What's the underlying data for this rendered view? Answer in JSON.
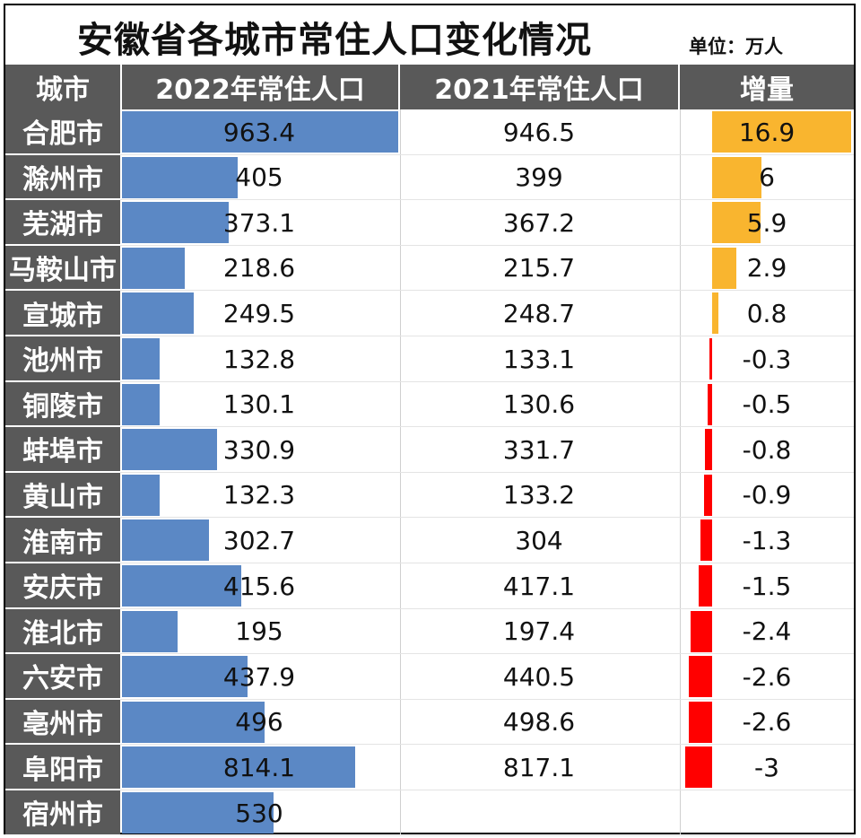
{
  "title": "安徽省各城市常住人口变化情况",
  "unit": "单位：万人",
  "headers": {
    "city": "城市",
    "y2022": "2022年常住人口",
    "y2021": "2021年常住人口",
    "delta": "增量"
  },
  "colors": {
    "header_bg": "#595959",
    "bar_2022": "#5b88c5",
    "delta_positive": "#f9b52f",
    "delta_negative": "#ff0000"
  },
  "chart_data": {
    "type": "table",
    "columns": [
      "城市",
      "2022年常住人口",
      "2021年常住人口",
      "增量"
    ],
    "rows": [
      {
        "city": "合肥市",
        "y2022": "963.4",
        "y2021": "946.5",
        "delta": "16.9"
      },
      {
        "city": "滁州市",
        "y2022": "405",
        "y2021": "399",
        "delta": "6"
      },
      {
        "city": "芜湖市",
        "y2022": "373.1",
        "y2021": "367.2",
        "delta": "5.9"
      },
      {
        "city": "马鞍山市",
        "y2022": "218.6",
        "y2021": "215.7",
        "delta": "2.9"
      },
      {
        "city": "宣城市",
        "y2022": "249.5",
        "y2021": "248.7",
        "delta": "0.8"
      },
      {
        "city": "池州市",
        "y2022": "132.8",
        "y2021": "133.1",
        "delta": "-0.3"
      },
      {
        "city": "铜陵市",
        "y2022": "130.1",
        "y2021": "130.6",
        "delta": "-0.5"
      },
      {
        "city": "蚌埠市",
        "y2022": "330.9",
        "y2021": "331.7",
        "delta": "-0.8"
      },
      {
        "city": "黄山市",
        "y2022": "132.3",
        "y2021": "133.2",
        "delta": "-0.9"
      },
      {
        "city": "淮南市",
        "y2022": "302.7",
        "y2021": "304",
        "delta": "-1.3"
      },
      {
        "city": "安庆市",
        "y2022": "415.6",
        "y2021": "417.1",
        "delta": "-1.5"
      },
      {
        "city": "淮北市",
        "y2022": "195",
        "y2021": "197.4",
        "delta": "-2.4"
      },
      {
        "city": "六安市",
        "y2022": "437.9",
        "y2021": "440.5",
        "delta": "-2.6"
      },
      {
        "city": "亳州市",
        "y2022": "496",
        "y2021": "498.6",
        "delta": "-2.6"
      },
      {
        "city": "阜阳市",
        "y2022": "814.1",
        "y2021": "817.1",
        "delta": "-3"
      },
      {
        "city": "宿州市",
        "y2022": "530",
        "y2021": "",
        "delta": ""
      }
    ]
  }
}
